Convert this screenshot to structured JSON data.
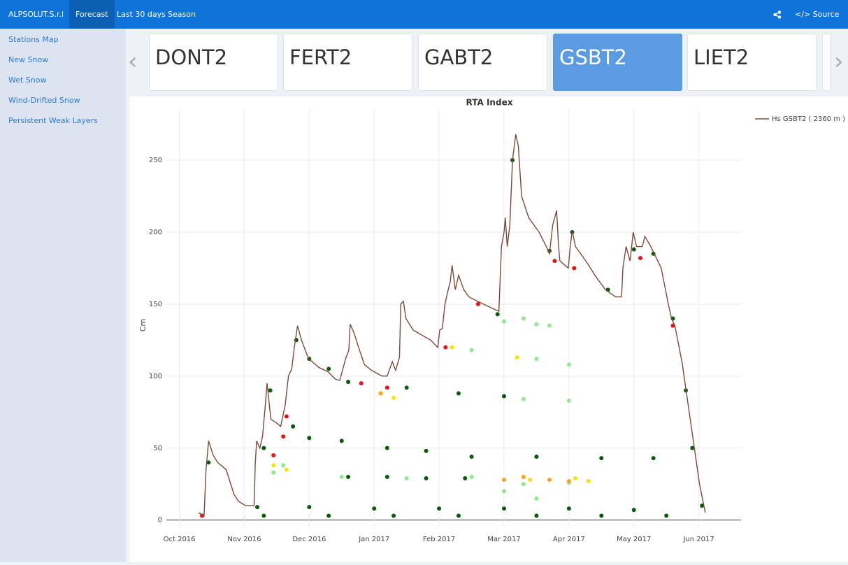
{
  "nav": {
    "brand": "ALPSOLUT.S.r.l",
    "items": [
      "Forecast",
      "Last 30 days",
      "Season"
    ],
    "source": "</> Source Code"
  },
  "sidebar": [
    "Stations Map",
    "New Snow",
    "Wet Snow",
    "Wind-Drifted Snow",
    "Persistent Weak Layers"
  ],
  "stations": [
    "DONT2",
    "FERT2",
    "GABT2",
    "GSBT2",
    "LIET2"
  ],
  "chart_data": {
    "type": "line",
    "title": "RTA Index",
    "y_label": "Cm",
    "grid": true,
    "legend": "top-right",
    "xlim": [
      -0.2,
      8.65
    ],
    "ylim": [
      -5,
      285
    ],
    "xticks": [
      {
        "value": 0,
        "label": "Oct 2016"
      },
      {
        "value": 1,
        "label": "Nov 2016"
      },
      {
        "value": 2,
        "label": "Dec 2016"
      },
      {
        "value": 3,
        "label": "Jan 2017"
      },
      {
        "value": 4,
        "label": "Feb 2017"
      },
      {
        "value": 5,
        "label": "Mar 2017"
      },
      {
        "value": 6,
        "label": "Apr 2017"
      },
      {
        "value": 7,
        "label": "May 2017"
      },
      {
        "value": 8,
        "label": "Jun 2017"
      }
    ],
    "yticks": [
      0,
      50,
      100,
      150,
      200,
      250
    ],
    "series": [
      {
        "name": "Hs GSBT2 ( 2360 m )",
        "color": "#7b4a3c",
        "type": "line",
        "x": [
          0.3,
          0.38,
          0.41,
          0.45,
          0.52,
          0.59,
          0.72,
          0.77,
          0.84,
          0.91,
          1.02,
          1.15,
          1.17,
          1.19,
          1.24,
          1.28,
          1.32,
          1.35,
          1.41,
          1.48,
          1.56,
          1.63,
          1.68,
          1.73,
          1.77,
          1.82,
          1.88,
          1.99,
          2.15,
          2.29,
          2.4,
          2.47,
          2.56,
          2.61,
          2.63,
          2.69,
          2.76,
          2.85,
          2.96,
          3.12,
          3.2,
          3.28,
          3.33,
          3.39,
          3.41,
          3.45,
          3.49,
          3.6,
          3.87,
          3.98,
          4.01,
          4.05,
          4.09,
          4.14,
          4.17,
          4.2,
          4.25,
          4.3,
          4.38,
          4.46,
          4.68,
          4.92,
          4.96,
          5.0,
          5.02,
          5.05,
          5.09,
          5.13,
          5.18,
          5.22,
          5.27,
          5.38,
          5.54,
          5.65,
          5.7,
          5.75,
          5.81,
          5.84,
          5.86,
          5.99,
          6.02,
          6.05,
          6.1,
          6.18,
          6.29,
          6.4,
          6.56,
          6.72,
          6.81,
          6.83,
          6.88,
          6.94,
          6.99,
          7.04,
          7.13,
          7.17,
          7.26,
          7.42,
          7.53,
          7.58,
          7.63,
          7.74,
          7.9,
          8.01,
          8.1
        ],
        "values": [
          5,
          3,
          35,
          55,
          45,
          40,
          35,
          28,
          18,
          13,
          10,
          10,
          40,
          55,
          50,
          58,
          78,
          95,
          70,
          68,
          65,
          80,
          100,
          105,
          120,
          135,
          125,
          112,
          106,
          103,
          98,
          97,
          112,
          118,
          136,
          130,
          120,
          108,
          104,
          100,
          100,
          110,
          104,
          113,
          150,
          152,
          140,
          132,
          125,
          120,
          132,
          133,
          150,
          160,
          165,
          177,
          160,
          170,
          160,
          155,
          150,
          145,
          190,
          200,
          210,
          190,
          205,
          250,
          268,
          260,
          225,
          210,
          200,
          190,
          185,
          205,
          215,
          190,
          180,
          175,
          190,
          201,
          190,
          185,
          178,
          170,
          160,
          155,
          155,
          175,
          190,
          180,
          200,
          190,
          190,
          197,
          190,
          175,
          150,
          140,
          135,
          110,
          60,
          25,
          5
        ]
      },
      {
        "color": "#0b5a0b",
        "type": "scatter",
        "x": [
          0.35,
          1.3,
          2.3,
          3.3,
          4.3,
          5.5,
          6.5,
          7.5,
          1.2,
          2.0,
          3.0,
          4.0,
          5.0,
          6.0,
          7.0,
          2.6,
          3.2,
          3.8,
          4.4,
          4.5,
          5.5,
          6.5,
          7.3,
          1.75,
          2.0,
          2.5,
          3.2,
          3.8,
          2.6,
          3.5,
          4.3,
          5.0,
          1.8,
          2.0,
          2.3,
          0.45,
          1.3,
          1.4,
          4.9,
          5.7,
          6.05,
          6.6,
          7.0,
          7.3,
          7.6,
          7.8,
          7.9,
          8.05,
          5.13
        ],
        "values": [
          3,
          3,
          3,
          3,
          3,
          3,
          3,
          3,
          9,
          9,
          8,
          8,
          8,
          8,
          7,
          30,
          30,
          29,
          29,
          44,
          44,
          43,
          43,
          65,
          57,
          55,
          50,
          48,
          96,
          92,
          88,
          86,
          125,
          112,
          105,
          40,
          50,
          90,
          143,
          187,
          200,
          160,
          188,
          185,
          140,
          90,
          50,
          10,
          250
        ]
      },
      {
        "color": "#90e890",
        "type": "scatter",
        "x": [
          1.6,
          2.5,
          3.5,
          4.5,
          5.0,
          5.5,
          5.3,
          6.0,
          5.0,
          5.5,
          4.5,
          5.5,
          6.0,
          5.3,
          6.0,
          1.45,
          5.3,
          5.7
        ],
        "values": [
          38,
          30,
          29,
          30,
          20,
          15,
          25,
          26,
          138,
          136,
          118,
          112,
          108,
          84,
          83,
          33,
          140,
          135
        ]
      },
      {
        "color": "#f2e312",
        "type": "scatter",
        "x": [
          1.45,
          1.65,
          4.2,
          5.2,
          5.4,
          6.1,
          6.3,
          3.3
        ],
        "values": [
          38,
          35,
          120,
          113,
          28,
          29,
          27,
          85
        ]
      },
      {
        "color": "#ffa21a",
        "type": "scatter",
        "x": [
          3.1,
          5.0,
          5.3,
          5.7,
          6.0
        ],
        "values": [
          88,
          28,
          30,
          28,
          27
        ]
      },
      {
        "color": "#e8141c",
        "type": "scatter",
        "x": [
          0.35,
          1.45,
          1.65,
          1.6,
          2.8,
          3.2,
          4.1,
          4.6,
          5.78,
          6.08,
          7.6,
          7.1
        ],
        "values": [
          3,
          45,
          72,
          58,
          95,
          92,
          120,
          150,
          180,
          175,
          135,
          182
        ]
      }
    ]
  }
}
